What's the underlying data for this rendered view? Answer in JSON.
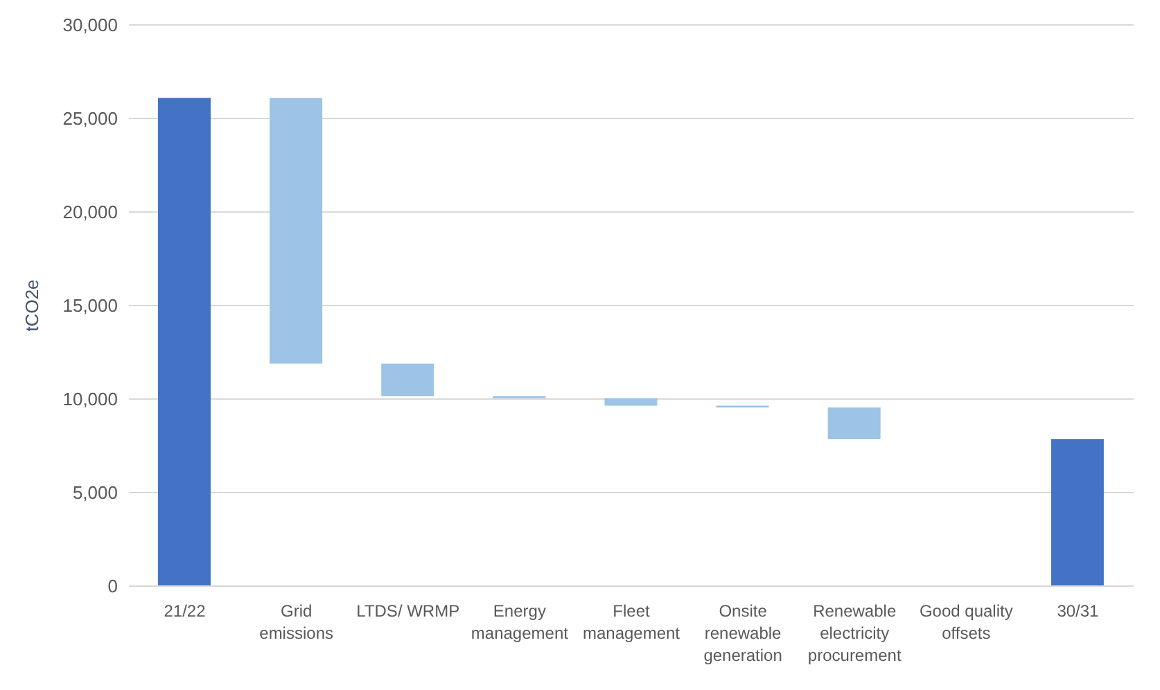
{
  "chart_data": {
    "type": "bar",
    "ylabel": "tCO2e",
    "categories": [
      "21/22",
      "Grid emissions",
      "LTDS/ WRMP",
      "Energy management",
      "Fleet management",
      "Onsite renewable generation",
      "Renewable electricity procurement",
      "Good quality offsets",
      "30/31"
    ],
    "base": [
      0,
      11900,
      10150,
      10050,
      9650,
      9550,
      7850,
      null,
      0
    ],
    "values": [
      26100,
      14200,
      1750,
      100,
      400,
      100,
      1700,
      0,
      7850
    ],
    "colors": [
      "#4472c4",
      "#9dc3e6",
      "#9dc3e6",
      "#9dc3e6",
      "#9dc3e6",
      "#9dc3e6",
      "#9dc3e6",
      "#9dc3e6",
      "#4472c4"
    ],
    "ylim": [
      0,
      30000
    ],
    "yticks": [
      0,
      {
        "value": 5000,
        "label": "5,000"
      },
      {
        "value": 10000,
        "label": "10,000"
      },
      {
        "value": 15000,
        "label": "15,000"
      },
      {
        "value": 20000,
        "label": "20,000"
      },
      {
        "value": 25000,
        "label": "25,000"
      },
      {
        "value": 30000,
        "label": "30,000"
      }
    ],
    "grid": "y"
  }
}
